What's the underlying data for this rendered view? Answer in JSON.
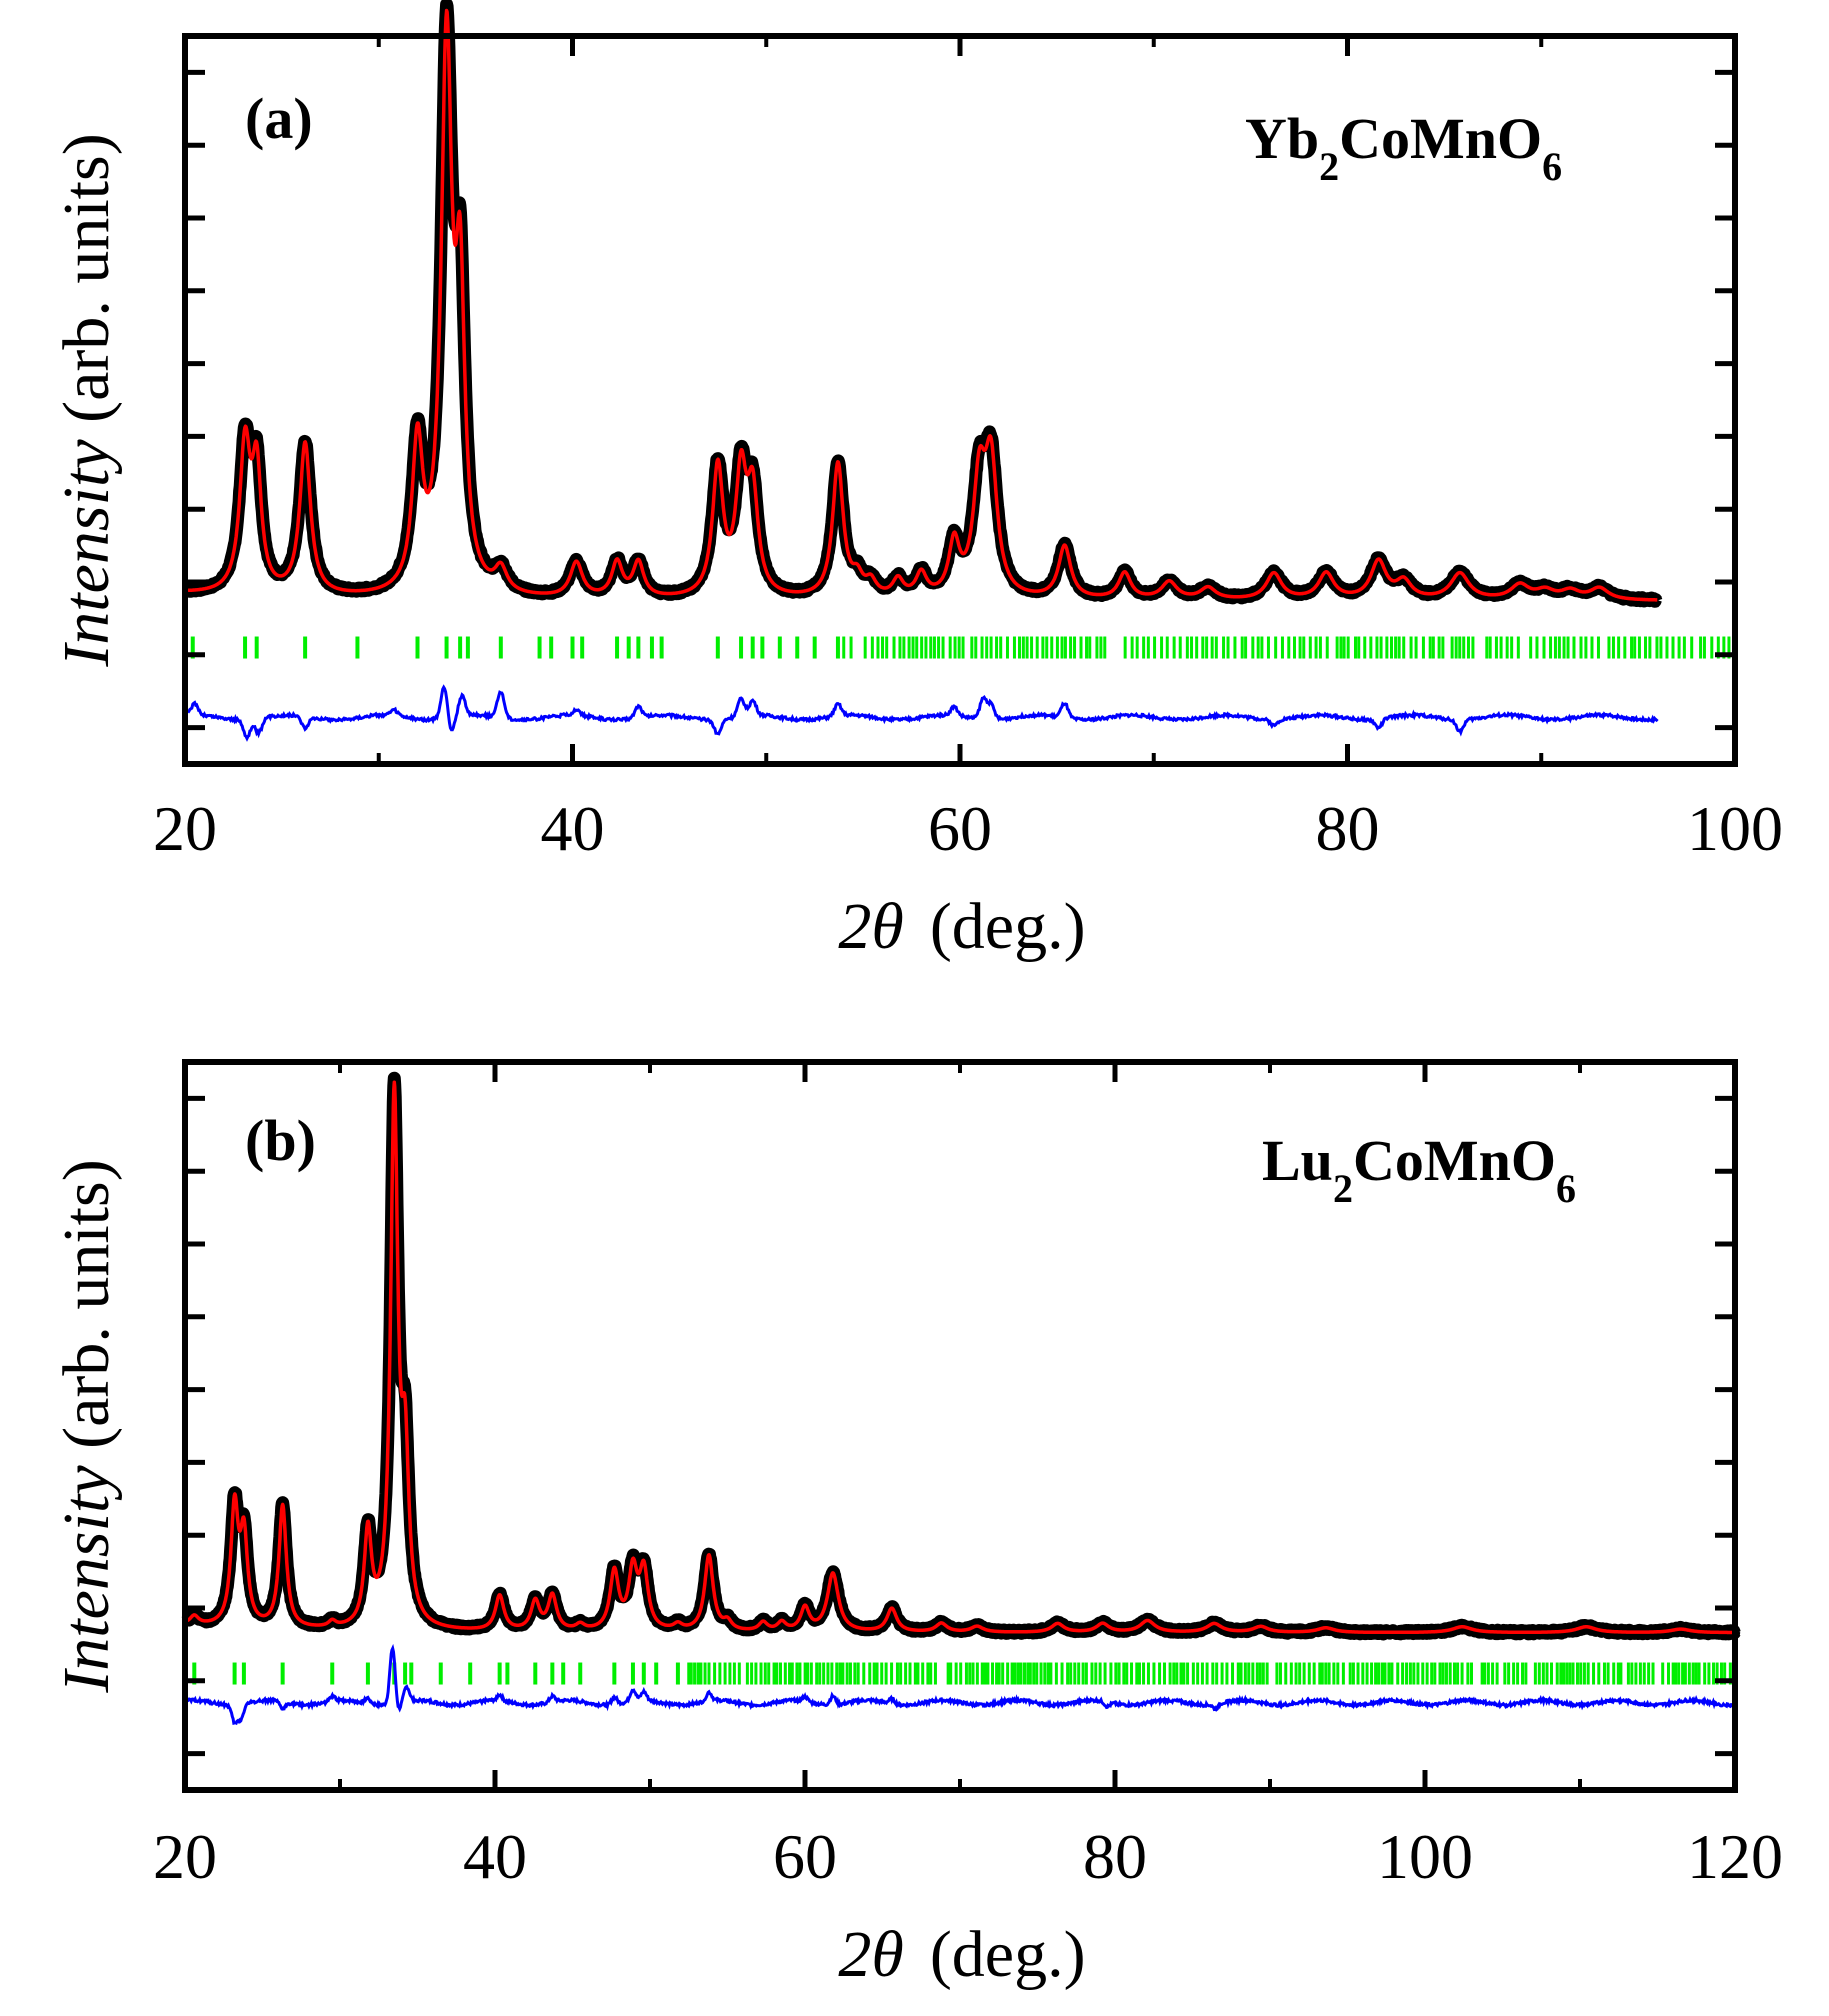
{
  "chart_data": [
    {
      "type": "line",
      "panel_label": "(a)",
      "compound": {
        "base": "Yb",
        "sub1": "2",
        "mid": "CoMnO",
        "sub2": "6"
      },
      "xlabel": {
        "symbol": "2θ",
        "unit": "(deg.)"
      },
      "ylabel": {
        "italic": "Intensity",
        "rest": " (arb. units)"
      },
      "xlim": [
        20,
        100
      ],
      "ylim": [
        -0.25,
        1.0
      ],
      "xticks": [
        "20",
        "40",
        "60",
        "80",
        "100"
      ],
      "xtick_values": [
        20,
        40,
        60,
        80,
        100
      ],
      "ytick_count": 10,
      "x_end": 96,
      "baseline": 0.03,
      "peaks": [
        {
          "x": 23.1,
          "h": 0.25,
          "w": 0.35
        },
        {
          "x": 23.7,
          "h": 0.2,
          "w": 0.3
        },
        {
          "x": 26.2,
          "h": 0.26,
          "w": 0.35
        },
        {
          "x": 32.0,
          "h": 0.25,
          "w": 0.35
        },
        {
          "x": 33.5,
          "h": 0.93,
          "w": 0.35
        },
        {
          "x": 34.2,
          "h": 0.48,
          "w": 0.3
        },
        {
          "x": 36.3,
          "h": 0.04,
          "w": 0.4
        },
        {
          "x": 40.2,
          "h": 0.06,
          "w": 0.4
        },
        {
          "x": 42.3,
          "h": 0.06,
          "w": 0.35
        },
        {
          "x": 43.4,
          "h": 0.06,
          "w": 0.35
        },
        {
          "x": 47.5,
          "h": 0.22,
          "w": 0.35
        },
        {
          "x": 48.7,
          "h": 0.2,
          "w": 0.35
        },
        {
          "x": 49.3,
          "h": 0.17,
          "w": 0.35
        },
        {
          "x": 53.7,
          "h": 0.23,
          "w": 0.35
        },
        {
          "x": 54.7,
          "h": 0.03,
          "w": 0.35
        },
        {
          "x": 55.4,
          "h": 0.025,
          "w": 0.35
        },
        {
          "x": 56.8,
          "h": 0.03,
          "w": 0.35
        },
        {
          "x": 58.0,
          "h": 0.04,
          "w": 0.35
        },
        {
          "x": 59.7,
          "h": 0.09,
          "w": 0.35
        },
        {
          "x": 61.0,
          "h": 0.19,
          "w": 0.4
        },
        {
          "x": 61.6,
          "h": 0.22,
          "w": 0.4
        },
        {
          "x": 65.4,
          "h": 0.09,
          "w": 0.4
        },
        {
          "x": 68.5,
          "h": 0.045,
          "w": 0.4
        },
        {
          "x": 70.8,
          "h": 0.03,
          "w": 0.5
        },
        {
          "x": 72.8,
          "h": 0.02,
          "w": 0.5
        },
        {
          "x": 76.2,
          "h": 0.045,
          "w": 0.5
        },
        {
          "x": 78.9,
          "h": 0.045,
          "w": 0.5
        },
        {
          "x": 81.6,
          "h": 0.065,
          "w": 0.5
        },
        {
          "x": 82.9,
          "h": 0.03,
          "w": 0.5
        },
        {
          "x": 85.8,
          "h": 0.045,
          "w": 0.6
        },
        {
          "x": 88.9,
          "h": 0.025,
          "w": 0.6
        },
        {
          "x": 90.2,
          "h": 0.015,
          "w": 0.6
        },
        {
          "x": 91.5,
          "h": 0.015,
          "w": 0.6
        },
        {
          "x": 93.0,
          "h": 0.02,
          "w": 0.6
        }
      ],
      "bragg_y": -0.05,
      "bragg_ticks_sparse": [
        20.4,
        23.1,
        23.7,
        26.2,
        28.9,
        32.0,
        33.5,
        34.2,
        34.6,
        36.3,
        38.3,
        38.9,
        40.0,
        40.5,
        42.3,
        42.9,
        43.4,
        44.1,
        44.6,
        47.5,
        48.7,
        49.3,
        49.8,
        50.7,
        51.6,
        52.5,
        53.7
      ],
      "bragg_dense_range": [
        54.0,
        100.0
      ],
      "diff_y": -0.17,
      "diff_features": [
        {
          "x": 20.5,
          "a": 0.02
        },
        {
          "x": 23.2,
          "a": -0.03
        },
        {
          "x": 23.8,
          "a": -0.025
        },
        {
          "x": 26.2,
          "a": -0.02
        },
        {
          "x": 30.8,
          "a": 0.01
        },
        {
          "x": 33.4,
          "a": 0.06
        },
        {
          "x": 33.7,
          "a": -0.03
        },
        {
          "x": 34.3,
          "a": 0.035
        },
        {
          "x": 36.3,
          "a": 0.045
        },
        {
          "x": 40.2,
          "a": 0.01
        },
        {
          "x": 43.4,
          "a": 0.02
        },
        {
          "x": 47.5,
          "a": -0.025
        },
        {
          "x": 48.7,
          "a": 0.03
        },
        {
          "x": 49.3,
          "a": 0.025
        },
        {
          "x": 53.7,
          "a": 0.02
        },
        {
          "x": 59.7,
          "a": 0.015
        },
        {
          "x": 61.2,
          "a": 0.035
        },
        {
          "x": 61.6,
          "a": 0.025
        },
        {
          "x": 65.4,
          "a": 0.025
        },
        {
          "x": 76.2,
          "a": -0.01
        },
        {
          "x": 81.6,
          "a": -0.015
        },
        {
          "x": 85.8,
          "a": -0.02
        }
      ]
    },
    {
      "type": "line",
      "panel_label": "(b)",
      "compound": {
        "base": "Lu",
        "sub1": "2",
        "mid": "CoMnO",
        "sub2": "6"
      },
      "xlabel": {
        "symbol": "2θ",
        "unit": "(deg.)"
      },
      "ylabel": {
        "italic": "Intensity",
        "rest": " (arb. units)"
      },
      "xlim": [
        20,
        120
      ],
      "ylim": [
        -0.25,
        1.0
      ],
      "xticks": [
        "20",
        "40",
        "60",
        "80",
        "100",
        "120"
      ],
      "xtick_values": [
        20,
        40,
        60,
        80,
        100,
        120
      ],
      "ytick_count": 10,
      "x_end": 120,
      "baseline": 0.02,
      "peaks": [
        {
          "x": 20.6,
          "h": 0.015,
          "w": 0.35
        },
        {
          "x": 23.2,
          "h": 0.2,
          "w": 0.3
        },
        {
          "x": 23.8,
          "h": 0.15,
          "w": 0.3
        },
        {
          "x": 26.3,
          "h": 0.21,
          "w": 0.3
        },
        {
          "x": 29.5,
          "h": 0.01,
          "w": 0.3
        },
        {
          "x": 31.8,
          "h": 0.16,
          "w": 0.3
        },
        {
          "x": 33.5,
          "h": 0.9,
          "w": 0.3
        },
        {
          "x": 34.2,
          "h": 0.27,
          "w": 0.3
        },
        {
          "x": 40.3,
          "h": 0.06,
          "w": 0.35
        },
        {
          "x": 42.6,
          "h": 0.05,
          "w": 0.35
        },
        {
          "x": 43.7,
          "h": 0.06,
          "w": 0.35
        },
        {
          "x": 45.5,
          "h": 0.01,
          "w": 0.35
        },
        {
          "x": 47.7,
          "h": 0.1,
          "w": 0.35
        },
        {
          "x": 48.9,
          "h": 0.1,
          "w": 0.35
        },
        {
          "x": 49.6,
          "h": 0.1,
          "w": 0.35
        },
        {
          "x": 51.8,
          "h": 0.01,
          "w": 0.35
        },
        {
          "x": 53.8,
          "h": 0.13,
          "w": 0.35
        },
        {
          "x": 55.0,
          "h": 0.015,
          "w": 0.35
        },
        {
          "x": 57.3,
          "h": 0.015,
          "w": 0.35
        },
        {
          "x": 58.5,
          "h": 0.015,
          "w": 0.35
        },
        {
          "x": 60.0,
          "h": 0.04,
          "w": 0.35
        },
        {
          "x": 61.8,
          "h": 0.1,
          "w": 0.45
        },
        {
          "x": 65.6,
          "h": 0.04,
          "w": 0.4
        },
        {
          "x": 68.8,
          "h": 0.015,
          "w": 0.45
        },
        {
          "x": 71.1,
          "h": 0.01,
          "w": 0.5
        },
        {
          "x": 76.3,
          "h": 0.015,
          "w": 0.5
        },
        {
          "x": 79.2,
          "h": 0.015,
          "w": 0.5
        },
        {
          "x": 82.1,
          "h": 0.02,
          "w": 0.6
        },
        {
          "x": 86.4,
          "h": 0.015,
          "w": 0.6
        },
        {
          "x": 89.4,
          "h": 0.01,
          "w": 0.6
        },
        {
          "x": 93.6,
          "h": 0.008,
          "w": 0.7
        },
        {
          "x": 102.4,
          "h": 0.01,
          "w": 0.8
        },
        {
          "x": 110.4,
          "h": 0.01,
          "w": 0.8
        },
        {
          "x": 116.5,
          "h": 0.006,
          "w": 0.8
        }
      ],
      "bragg_y": -0.05,
      "bragg_ticks_sparse": [
        20.6,
        23.2,
        23.8,
        26.3,
        29.5,
        31.8,
        33.5,
        34.2,
        34.6,
        36.5,
        38.4,
        40.3,
        40.8,
        42.6,
        43.7,
        44.4,
        45.5,
        47.7,
        48.9,
        49.6,
        50.4,
        51.8
      ],
      "bragg_dense_range": [
        52.5,
        120.0
      ],
      "diff_y": -0.1,
      "diff_features": [
        {
          "x": 23.2,
          "a": -0.03
        },
        {
          "x": 23.6,
          "a": -0.025
        },
        {
          "x": 26.3,
          "a": -0.012
        },
        {
          "x": 29.5,
          "a": 0.008
        },
        {
          "x": 31.8,
          "a": 0.01
        },
        {
          "x": 33.4,
          "a": 0.1
        },
        {
          "x": 33.7,
          "a": -0.02
        },
        {
          "x": 34.3,
          "a": 0.025
        },
        {
          "x": 40.3,
          "a": 0.01
        },
        {
          "x": 43.7,
          "a": 0.01
        },
        {
          "x": 47.7,
          "a": 0.012
        },
        {
          "x": 48.9,
          "a": 0.02
        },
        {
          "x": 49.6,
          "a": 0.015
        },
        {
          "x": 53.8,
          "a": 0.015
        },
        {
          "x": 60.0,
          "a": 0.008
        },
        {
          "x": 61.8,
          "a": 0.015
        },
        {
          "x": 65.6,
          "a": 0.008
        },
        {
          "x": 79.5,
          "a": -0.008
        },
        {
          "x": 86.5,
          "a": -0.008
        }
      ]
    }
  ],
  "colors": {
    "observed": "#000000",
    "calculated": "#ff0000",
    "bragg": "#00ee00",
    "difference": "#0000ff",
    "frame": "#000000"
  }
}
